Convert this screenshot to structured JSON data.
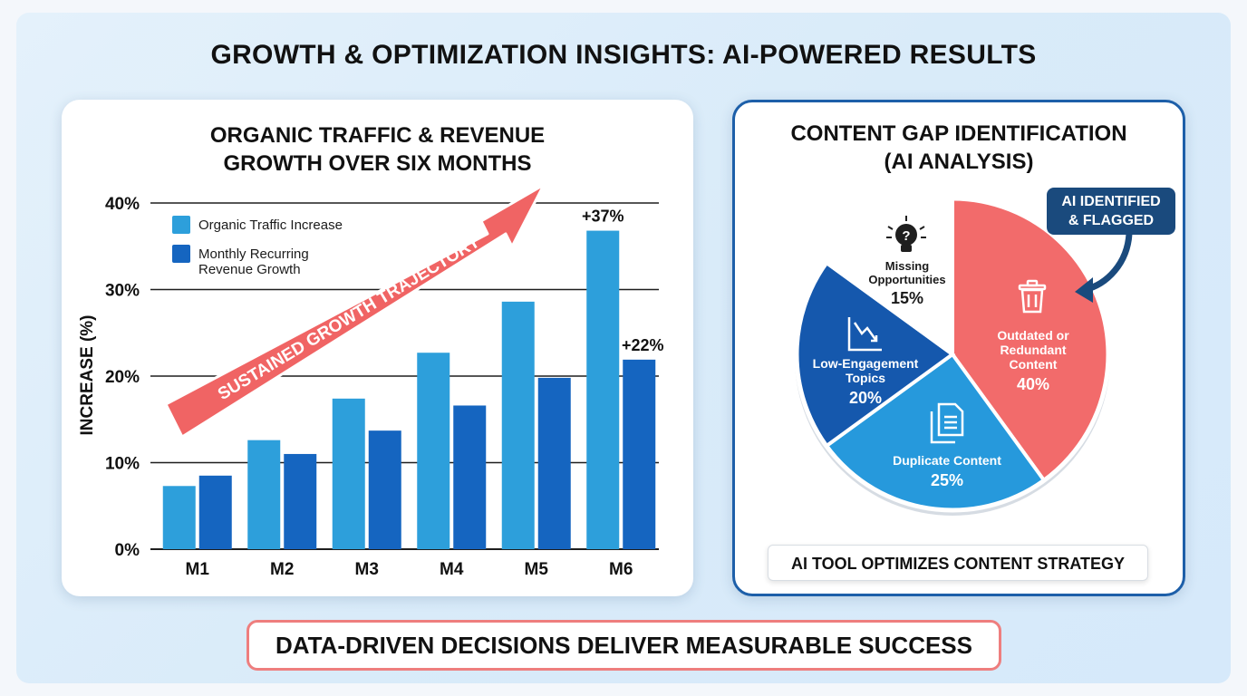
{
  "title": "GROWTH & OPTIMIZATION INSIGHTS: AI-POWERED RESULTS",
  "footer": "DATA-DRIVEN DECISIONS DELIVER MEASURABLE SUCCESS",
  "colors": {
    "traffic": "#2d9fdb",
    "revenue": "#1565c0",
    "arrow": "#f06464",
    "pie_red": "#f26b6b",
    "pie_light": "#2699dc",
    "pie_dark": "#1558ad",
    "pie_white": "#ffffff",
    "badge": "#1a4a7d"
  },
  "chart_data": [
    {
      "type": "bar",
      "title_line1": "ORGANIC TRAFFIC & REVENUE",
      "title_line2": "GROWTH OVER SIX MONTHS",
      "ylabel": "INCREASE (%)",
      "ylim": [
        0,
        40
      ],
      "yticks": [
        "0%",
        "10%",
        "20%",
        "30%",
        "40%"
      ],
      "categories": [
        "M1",
        "M2",
        "M3",
        "M4",
        "M5",
        "M6"
      ],
      "series": [
        {
          "name": "Organic Traffic Increase",
          "values": [
            7.3,
            12.6,
            17.4,
            22.7,
            28.6,
            36.8
          ]
        },
        {
          "name_line1": "Monthly Recurring",
          "name_line2": "Revenue Growth",
          "values": [
            8.5,
            11.0,
            13.7,
            16.6,
            19.8,
            21.9
          ]
        }
      ],
      "data_labels": {
        "traffic_m6": "+37%",
        "revenue_m6": "+22%"
      },
      "annotation": "SUSTAINED GROWTH TRAJECTORY",
      "grid": true,
      "legend": "top-left"
    },
    {
      "type": "pie",
      "title_line1": "CONTENT GAP IDENTIFICATION",
      "title_line2": "(AI ANALYSIS)",
      "slices": [
        {
          "label_line1": "Outdated or",
          "label_line2": "Redundant",
          "label_line3": "Content",
          "value": 40,
          "pct": "40%",
          "icon": "trash-icon"
        },
        {
          "label": "Duplicate Content",
          "value": 25,
          "pct": "25%",
          "icon": "document-copy-icon"
        },
        {
          "label_line1": "Low-Engagement",
          "label_line2": "Topics",
          "value": 20,
          "pct": "20%",
          "icon": "downtrend-chart-icon"
        },
        {
          "label_line1": "Missing",
          "label_line2": "Opportunities",
          "value": 15,
          "pct": "15%",
          "icon": "lightbulb-question-icon"
        }
      ],
      "callout_line1": "AI IDENTIFIED",
      "callout_line2": "& FLAGGED",
      "caption": "AI TOOL OPTIMIZES CONTENT STRATEGY"
    }
  ]
}
